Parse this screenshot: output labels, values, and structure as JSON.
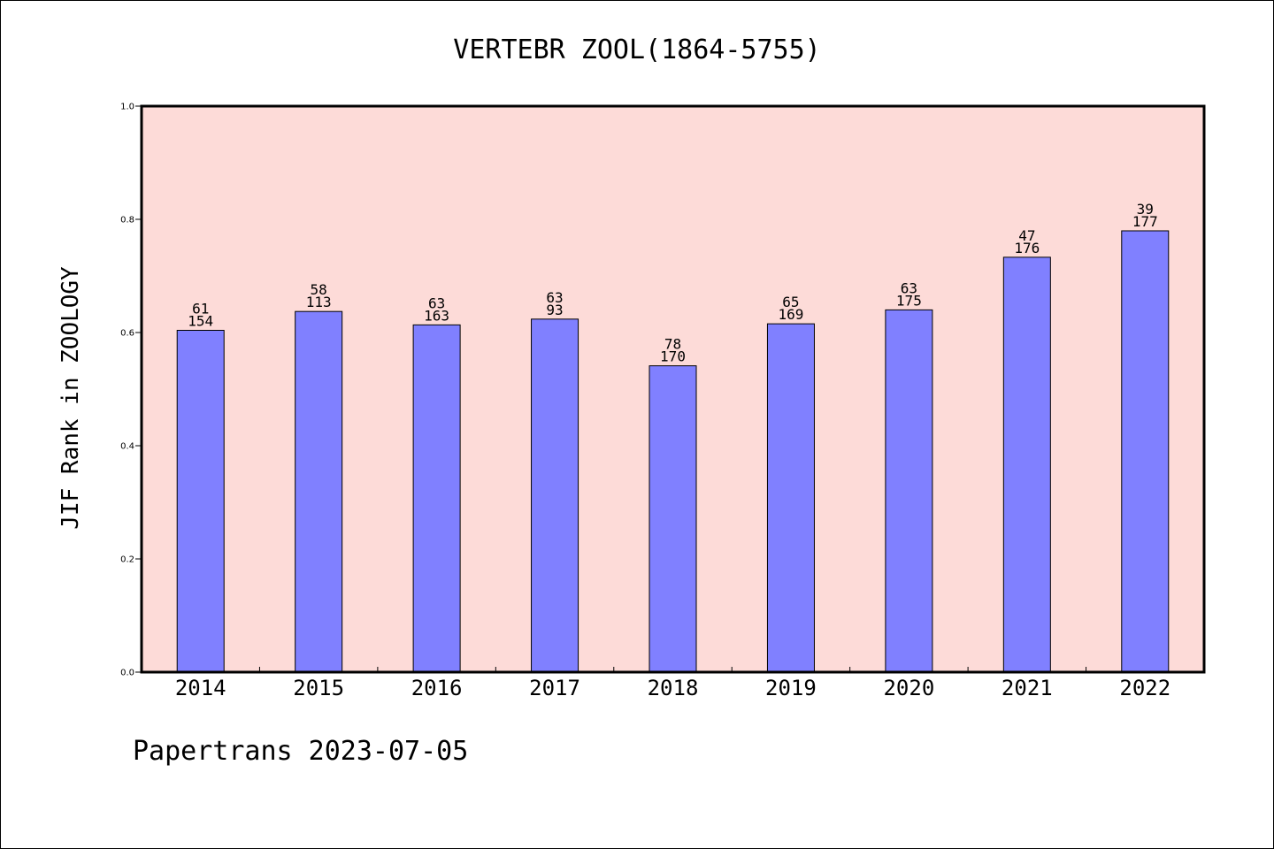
{
  "chart_data": {
    "type": "bar",
    "title": "VERTEBR ZOOL(1864-5755)",
    "ylabel": "JIF Rank in ZOOLOGY",
    "xlabel": "",
    "ylim": [
      0,
      1.0
    ],
    "yticks": [
      "0.0",
      "0.2",
      "0.4",
      "0.6",
      "0.8",
      "1.0"
    ],
    "ytick_values": [
      0.0,
      0.2,
      0.4,
      0.6,
      0.8,
      1.0
    ],
    "categories": [
      "2014",
      "2015",
      "2016",
      "2017",
      "2018",
      "2019",
      "2020",
      "2021",
      "2022"
    ],
    "values": [
      0.6039,
      0.6372,
      0.6135,
      0.6237,
      0.5412,
      0.6154,
      0.64,
      0.733,
      0.7797
    ],
    "labels_top": [
      "61",
      "58",
      "63",
      "63",
      "78",
      "65",
      "63",
      "47",
      "39"
    ],
    "labels_bottom": [
      "154",
      "113",
      "163",
      "93",
      "170",
      "169",
      "175",
      "176",
      "177"
    ],
    "grid": false,
    "colors": {
      "bar": "#8080ff",
      "plot_background": "#fddbd8",
      "axis": "#000000"
    }
  },
  "footer": {
    "text": "Papertrans 2023-07-05"
  }
}
